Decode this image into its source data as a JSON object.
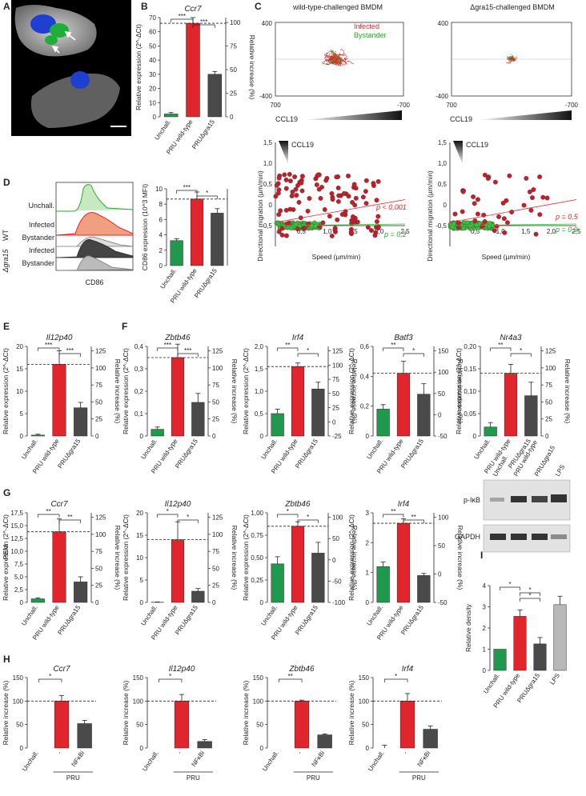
{
  "colors": {
    "green": "#1f9a4c",
    "red": "#e0262c",
    "grey": "#4a4a4a",
    "lightgrey": "#b8b8b8",
    "track_red": "#e0262c",
    "track_green": "#3fbf3f"
  },
  "panel_letters": [
    "A",
    "B",
    "C",
    "D",
    "E",
    "F",
    "G",
    "H",
    "I"
  ],
  "common": {
    "cat_uninf": "Unchall.",
    "cat_wt": "PRU wild-type",
    "cat_dgra": "PRUΔgra15",
    "ylabel_expr": "Relative expression (2^-ΔCt)",
    "ylabel_rel": "Relative increase (%)",
    "sig3": "***",
    "sig2": "**",
    "sig1": "*"
  },
  "panelA": {
    "scale": "",
    "arrows": 2
  },
  "panelC": {
    "left_title": "wild-type-challenged BMDM",
    "right_title": "Δgra15-challenged BMDM",
    "legend_infected": "Infected",
    "legend_bystander": "Bystander",
    "y_top": "400",
    "y_bot": "-400",
    "x_left": "700",
    "x_right": "-700",
    "gradient_label": "CCL19",
    "scatter": {
      "ylabel": "Directional migration (µm/min)",
      "xlabel": "Speed (µm/min)",
      "yticks": [
        "1,5",
        "1,0",
        "0,5",
        "0",
        "-0,5"
      ],
      "xticks": [
        "0,5",
        "1,0",
        "1,5",
        "2,0",
        "2,5"
      ],
      "left_p_red": "p < 0,001",
      "left_p_green": "p = 0,2",
      "right_p_red": "p = 0,5",
      "right_p_green": "p = 0,9"
    }
  },
  "panelD": {
    "rows": [
      "Unchall.",
      "Infected",
      "Bystander",
      "Infected",
      "Bystander"
    ],
    "group_wt": "WT",
    "group_dgra": "Δgra15",
    "xlabel": "CD86",
    "bar_ylabel": "CD86 expression (10^3 MFI)",
    "bar_ylabel_right": "CD86 relative increase (%)",
    "yticks": [
      "0",
      "2",
      "4",
      "6",
      "8",
      "10"
    ],
    "yticks_right": [
      "-50",
      "0",
      "50",
      "100"
    ]
  },
  "chart_data": [
    {
      "panel": "B",
      "type": "bar",
      "title": "Ccr7",
      "categories": [
        "Unchall.",
        "PRU wild-type",
        "PRUΔgra15"
      ],
      "values": [
        2,
        66,
        30
      ],
      "errors": [
        1,
        4,
        2
      ],
      "ylim": [
        0,
        70
      ],
      "yticks": [
        "0",
        "10",
        "20",
        "30",
        "40",
        "50",
        "60",
        "70"
      ],
      "ylim_right_ticks": [
        "0",
        "25",
        "50",
        "75",
        "100"
      ],
      "sig": [
        "***",
        "***"
      ]
    },
    {
      "panel": "E",
      "type": "bar",
      "title": "Il12p40",
      "categories": [
        "Unchall.",
        "PRU wild-type",
        "PRUΔgra15"
      ],
      "values": [
        0.2,
        16,
        6.3
      ],
      "errors": [
        0.2,
        3,
        1.2
      ],
      "ylim": [
        0,
        20
      ],
      "yticks": [
        "0",
        "5",
        "10",
        "15",
        "20"
      ],
      "ylim_right_ticks": [
        "0",
        "25",
        "50",
        "75",
        "100",
        "125"
      ],
      "sig": [
        "***",
        "***"
      ]
    },
    {
      "panel": "F1",
      "type": "bar",
      "title": "Zbtb46",
      "categories": [
        "Unchall.",
        "PRU wild-type",
        "PRUΔgra15"
      ],
      "values": [
        0.03,
        0.35,
        0.15
      ],
      "errors": [
        0.01,
        0.06,
        0.04
      ],
      "ylim": [
        0,
        0.4
      ],
      "yticks": [
        "0",
        "0,1",
        "0,2",
        "0,3",
        "0,4"
      ],
      "ylim_right_ticks": [
        "0",
        "25",
        "50",
        "75",
        "100",
        "125"
      ],
      "sig": [
        "***",
        "***"
      ]
    },
    {
      "panel": "F2",
      "type": "bar",
      "title": "Irf4",
      "categories": [
        "Unchall.",
        "PRU wild-type",
        "PRUΔgra15"
      ],
      "values": [
        0.5,
        1.55,
        1.05
      ],
      "errors": [
        0.1,
        0.08,
        0.15
      ],
      "ylim": [
        0,
        2
      ],
      "yticks": [
        "0",
        "0,5",
        "1,0",
        "1,5",
        "2,0"
      ],
      "ylim_right_ticks": [
        "-25",
        "0",
        "25",
        "50",
        "75",
        "100",
        "125"
      ],
      "sig": [
        "**",
        "*"
      ]
    },
    {
      "panel": "F3",
      "type": "bar",
      "title": "Batf3",
      "categories": [
        "Unchall.",
        "PRU wild-type",
        "PRUΔgra15"
      ],
      "values": [
        0.18,
        0.42,
        0.28
      ],
      "errors": [
        0.03,
        0.08,
        0.07
      ],
      "ylim": [
        0,
        0.6
      ],
      "yticks": [
        "0",
        "0,2",
        "0,4",
        "0,6"
      ],
      "ylim_right_ticks": [
        "-50",
        "0",
        "50",
        "100",
        "150"
      ],
      "sig": [
        "**",
        "*"
      ]
    },
    {
      "panel": "F4",
      "type": "bar",
      "title": "Nr4a3",
      "categories": [
        "Unchall.",
        "PRU wild-type",
        "PRUΔgra15"
      ],
      "values": [
        0.02,
        0.14,
        0.09
      ],
      "errors": [
        0.01,
        0.02,
        0.03
      ],
      "ylim": [
        0,
        0.2
      ],
      "yticks": [
        "0",
        "0,05",
        "0,10",
        "0,15",
        "0,20"
      ],
      "ylim_right_ticks": [
        "0",
        "25",
        "50",
        "75",
        "100",
        "125"
      ],
      "sig": [
        "**",
        "*"
      ]
    },
    {
      "panel": "G1",
      "type": "bar",
      "title": "Ccr7",
      "categories": [
        "Unchall.",
        "PRU wild-type",
        "PRUΔgra15"
      ],
      "values": [
        0.7,
        13.8,
        4
      ],
      "errors": [
        0.2,
        2.5,
        1
      ],
      "ylim": [
        0,
        17.5
      ],
      "yticks": [
        "0",
        "2,5",
        "5,0",
        "7,5",
        "10,0",
        "12,5",
        "15,0",
        "17,5"
      ],
      "ylim_right_ticks": [
        "0",
        "25",
        "50",
        "75",
        "100",
        "125"
      ],
      "sig": [
        "**",
        "**"
      ]
    },
    {
      "panel": "G2",
      "type": "bar",
      "title": "Il12p40",
      "categories": [
        "Unchall.",
        "PRU wild-type",
        "PRUΔgra15"
      ],
      "values": [
        0.05,
        14,
        2.5
      ],
      "errors": [
        0.05,
        4,
        0.6
      ],
      "ylim": [
        0,
        20
      ],
      "yticks": [
        "0",
        "5",
        "10",
        "15",
        "20"
      ],
      "ylim_right_ticks": [
        "0",
        "25",
        "50",
        "75",
        "100",
        "125"
      ],
      "sig": [
        "*",
        "*"
      ]
    },
    {
      "panel": "G3",
      "type": "bar",
      "title": "Zbtb46",
      "categories": [
        "Unchall.",
        "PRU wild-type",
        "PRUΔgra15"
      ],
      "values": [
        0.43,
        0.85,
        0.55
      ],
      "errors": [
        0.08,
        0.05,
        0.12
      ],
      "ylim": [
        0,
        1
      ],
      "yticks": [
        "0",
        "0,25",
        "0,50",
        "0,75",
        "1,00"
      ],
      "ylim_right_ticks": [
        "-100",
        "-50",
        "0",
        "50",
        "100"
      ],
      "sig": [
        "*",
        "*"
      ]
    },
    {
      "panel": "G4",
      "type": "bar",
      "title": "Irf4",
      "categories": [
        "Unchall.",
        "PRU wild-type",
        "PRUΔgra15"
      ],
      "values": [
        1.2,
        2.65,
        0.9
      ],
      "errors": [
        0.15,
        0.15,
        0.07
      ],
      "ylim": [
        0,
        3
      ],
      "yticks": [
        "0",
        "1",
        "2",
        "3"
      ],
      "ylim_right_ticks": [
        "-50",
        "0",
        "50",
        "100"
      ],
      "sig": [
        "**",
        "**"
      ]
    },
    {
      "panel": "H1",
      "type": "bar",
      "title": "Ccr7",
      "categories": [
        "Unchall.",
        "-",
        "NFκBi"
      ],
      "values": [
        0,
        100,
        52
      ],
      "errors": [
        0,
        12,
        7
      ],
      "ylim": [
        0,
        150
      ],
      "yticks": [
        "0",
        "50",
        "100",
        "150"
      ],
      "group_label": "PRU",
      "sig": [
        "*"
      ]
    },
    {
      "panel": "H2",
      "type": "bar",
      "title": "Il12p40",
      "categories": [
        "Unchall.",
        "-",
        "NFκBi"
      ],
      "values": [
        0,
        100,
        14
      ],
      "errors": [
        0,
        14,
        4
      ],
      "ylim": [
        0,
        150
      ],
      "yticks": [
        "0",
        "50",
        "100",
        "150"
      ],
      "group_label": "PRU",
      "sig": [
        "*"
      ]
    },
    {
      "panel": "H3",
      "type": "bar",
      "title": "Zbtb46",
      "categories": [
        "Unchall.",
        "-",
        "NFκBi"
      ],
      "values": [
        0,
        100,
        28
      ],
      "errors": [
        0,
        2,
        2
      ],
      "ylim": [
        0,
        150
      ],
      "yticks": [
        "0",
        "50",
        "100",
        "150"
      ],
      "group_label": "PRU",
      "sig": [
        "**"
      ]
    },
    {
      "panel": "H4",
      "type": "bar",
      "title": "Irf4",
      "categories": [
        "Unchall.",
        "-",
        "NFκBi"
      ],
      "values": [
        0,
        100,
        40
      ],
      "errors": [
        6,
        16,
        7
      ],
      "ylim": [
        0,
        150
      ],
      "yticks": [
        "0",
        "50",
        "100",
        "150"
      ],
      "group_label": "PRU",
      "sig": [
        "*"
      ]
    },
    {
      "panel": "D-bar",
      "type": "bar",
      "title": "",
      "categories": [
        "Unchall.",
        "PRU wild-type",
        "PRUΔgra15"
      ],
      "values": [
        3.9,
        10.4,
        8.2
      ],
      "errors": [
        0.3,
        1.1,
        0.7
      ],
      "ylim": [
        0,
        12
      ],
      "yticks": [
        "0",
        "2",
        "4",
        "6",
        "8",
        "10"
      ],
      "sig": [
        "***",
        "*"
      ]
    },
    {
      "panel": "I",
      "type": "bar",
      "title": "",
      "categories": [
        "Unchall.",
        "PRU wild-type",
        "PRUΔgra15",
        "LPS"
      ],
      "values": [
        1,
        2.55,
        1.25,
        3.1
      ],
      "errors": [
        0,
        0.3,
        0.3,
        0.4
      ],
      "ylim": [
        0,
        4
      ],
      "yticks": [
        "0",
        "1",
        "2",
        "3",
        "4"
      ],
      "ylabel": "Relative density",
      "sig": [
        "*",
        "*",
        "*"
      ]
    }
  ],
  "panelI": {
    "blot1": "p-IκB",
    "blot2": "GAPDH",
    "lanes": [
      "Unchall.",
      "PRU wild-type",
      "PRUΔgra15",
      "LPS"
    ]
  }
}
